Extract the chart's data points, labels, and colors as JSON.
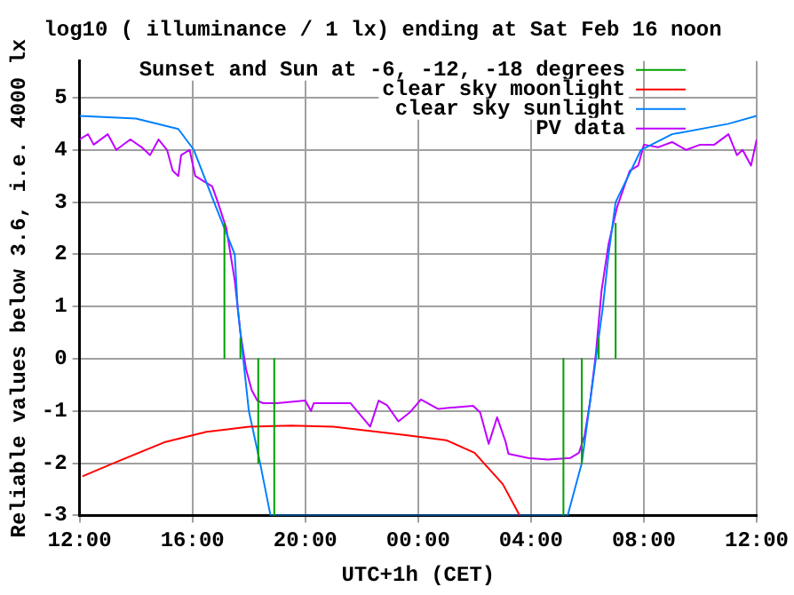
{
  "chart_data": {
    "type": "line",
    "title": "log10 ( illuminance / 1 lx) ending at Sat Feb 16 noon",
    "xlabel": "UTC+1h (CET)",
    "ylabel": "Reliable values below 3.6, i.e. 4000 lx",
    "xlim": [
      "--02-15T12:00",
      "--02-16T12:00"
    ],
    "xticks": [
      {
        "value": "--02-15T12:00",
        "label": "12:00"
      },
      {
        "value": "--02-15T16:00",
        "label": "16:00"
      },
      {
        "value": "--02-15T20:00",
        "label": "20:00"
      },
      {
        "value": "--02-16T00:00",
        "label": "00:00"
      },
      {
        "value": "--02-16T04:00",
        "label": "04:00"
      },
      {
        "value": "--02-16T08:00",
        "label": "08:00"
      },
      {
        "value": "--02-16T12:00",
        "label": "12:00"
      }
    ],
    "ylim": [
      -3,
      5.7
    ],
    "yticks": [
      -3,
      -2,
      -1,
      0,
      1,
      2,
      3,
      4,
      5
    ],
    "grid": true,
    "legend": "top right",
    "line_style": "solid",
    "series": [
      {
        "name": "Sunset and Sun at -6, -12, -18 degrees",
        "color": "#00a000",
        "x": [
          "--02-15T17:08",
          "--02-15T17:08",
          null,
          "--02-15T17:42",
          "--02-15T17:42",
          null,
          "--02-15T18:20",
          "--02-15T18:20",
          null,
          "--02-15T18:54",
          "--02-15T18:54",
          null,
          "--02-16T05:09",
          "--02-16T05:09",
          null,
          "--02-16T05:48",
          "--02-16T05:48",
          null,
          "--02-16T06:24",
          "--02-16T06:24",
          null,
          "--02-16T07:00",
          "--02-16T07:00"
        ],
        "values": [
          0,
          2.6,
          null,
          0,
          0.4,
          null,
          0,
          -2,
          null,
          0,
          -3,
          null,
          0,
          -3,
          null,
          0,
          -2,
          null,
          0,
          0.4,
          null,
          0,
          2.6
        ]
      },
      {
        "name": "clear sky moonlight",
        "color": "#ff0000",
        "x": [
          "--02-15T12:06",
          "--02-15T13:12",
          "--02-15T15:00",
          "--02-15T16:30",
          "--02-15T18:00",
          "--02-15T19:30",
          "--02-15T21:00",
          "--02-15T23:30",
          "--02-16T01:00",
          "--02-16T02:00",
          "--02-16T03:00",
          "--02-16T03:36"
        ],
        "values": [
          -2.25,
          -2,
          -1.6,
          -1.4,
          -1.3,
          -1.28,
          -1.3,
          -1.46,
          -1.56,
          -1.8,
          -2.4,
          -3
        ]
      },
      {
        "name": "clear sky sunlight",
        "color": "#0080ff",
        "x": [
          "--02-15T12:00",
          "--02-15T14:00",
          "--02-15T15:30",
          "--02-15T16:03",
          "--02-15T16:46",
          "--02-15T17:30",
          "--02-15T17:36",
          "--02-15T17:48",
          "--02-15T18:00",
          "--02-15T18:24",
          "--02-15T18:46",
          "--02-16T05:18",
          "--02-16T05:48",
          "--02-16T06:03",
          "--02-16T06:18",
          "--02-16T06:33",
          "--02-16T06:45",
          "--02-16T07:00",
          "--02-16T07:54",
          "--02-16T09:00",
          "--02-16T11:00",
          "--02-16T12:00"
        ],
        "values": [
          4.65,
          4.6,
          4.4,
          4.0,
          3.0,
          2.0,
          1.0,
          0,
          -1,
          -2,
          -3,
          -3,
          -2,
          -1,
          0,
          1,
          2,
          3,
          4,
          4.3,
          4.5,
          4.65
        ]
      },
      {
        "name": "PV data",
        "color": "#c000ff",
        "x": [
          "--02-15T12:00",
          "--02-15T12:18",
          "--02-15T12:30",
          "--02-15T13:00",
          "--02-15T13:18",
          "--02-15T13:48",
          "--02-15T14:12",
          "--02-15T14:30",
          "--02-15T14:48",
          "--02-15T15:06",
          "--02-15T15:18",
          "--02-15T15:30",
          "--02-15T15:36",
          "--02-15T15:54",
          "--02-15T16:06",
          "--02-15T16:24",
          "--02-15T16:42",
          "--02-15T16:54",
          "--02-15T17:12",
          "--02-15T17:30",
          "--02-15T17:42",
          "--02-15T17:54",
          "--02-15T18:06",
          "--02-15T18:18",
          "--02-15T18:30",
          "--02-15T19:00",
          "--02-15T20:00",
          "--02-15T20:12",
          "--02-15T20:18",
          "--02-15T21:36",
          "--02-15T22:18",
          "--02-15T22:36",
          "--02-15T22:54",
          "--02-15T23:18",
          "--02-15T23:42",
          "--02-16T00:06",
          "--02-16T00:42",
          "--02-16T01:18",
          "--02-16T01:57",
          "--02-16T02:12",
          "--02-16T02:30",
          "--02-16T02:48",
          "--02-16T03:06",
          "--02-16T03:12",
          "--02-16T03:54",
          "--02-16T04:36",
          "--02-16T05:24",
          "--02-16T05:42",
          "--02-16T05:54",
          "--02-16T06:06",
          "--02-16T06:18",
          "--02-16T06:30",
          "--02-16T06:45",
          "--02-16T07:03",
          "--02-16T07:30",
          "--02-16T07:48",
          "--02-16T08:00",
          "--02-16T08:30",
          "--02-16T09:00",
          "--02-16T09:30",
          "--02-16T10:00",
          "--02-16T10:30",
          "--02-16T11:00",
          "--02-16T11:18",
          "--02-16T11:30",
          "--02-16T11:48",
          "--02-16T12:00"
        ],
        "values": [
          4.2,
          4.3,
          4.1,
          4.3,
          4.0,
          4.2,
          4.05,
          3.9,
          4.2,
          4.0,
          3.6,
          3.5,
          3.9,
          4.0,
          3.5,
          3.4,
          3.3,
          3.0,
          2.5,
          1.5,
          0.5,
          -0.2,
          -0.6,
          -0.8,
          -0.85,
          -0.85,
          -0.8,
          -1.0,
          -0.85,
          -0.85,
          -1.3,
          -0.8,
          -0.89,
          -1.2,
          -1.03,
          -0.78,
          -0.96,
          -0.93,
          -0.9,
          -1.03,
          -1.63,
          -1.12,
          -1.59,
          -1.82,
          -1.9,
          -1.93,
          -1.9,
          -1.8,
          -1.47,
          -0.8,
          0.1,
          1.3,
          2.2,
          2.9,
          3.6,
          3.7,
          4.1,
          4.05,
          4.15,
          4.0,
          4.1,
          4.1,
          4.3,
          3.9,
          4.0,
          3.7,
          4.2
        ]
      }
    ]
  }
}
